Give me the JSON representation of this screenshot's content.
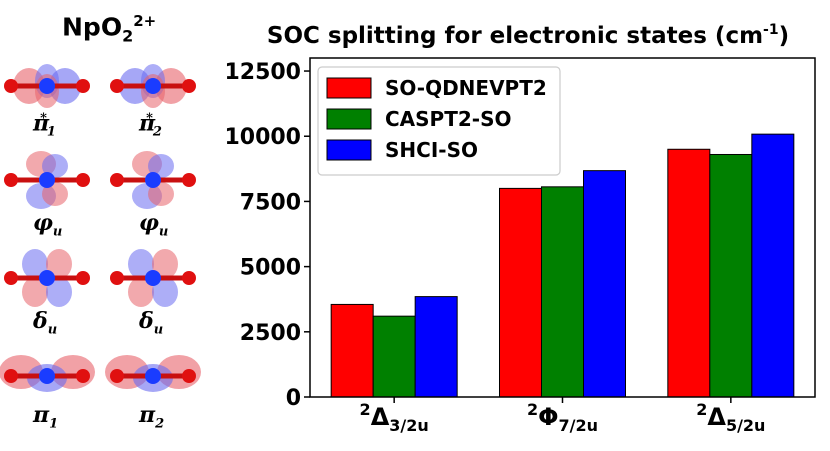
{
  "molecule": {
    "base": "NpO",
    "sub": "2",
    "sup": "2+"
  },
  "orbitals": [
    {
      "shape": "pi-star",
      "sym": "π",
      "sub": "1",
      "sup": "*"
    },
    {
      "shape": "pi-star",
      "sym": "π",
      "sub": "2",
      "sup": "*"
    },
    {
      "shape": "phi",
      "sym": "φ",
      "sub": "u",
      "sup": ""
    },
    {
      "shape": "phi",
      "sym": "φ",
      "sub": "u",
      "sup": ""
    },
    {
      "shape": "delta",
      "sym": "δ",
      "sub": "u",
      "sup": ""
    },
    {
      "shape": "delta",
      "sym": "δ",
      "sub": "u",
      "sup": ""
    },
    {
      "shape": "pi",
      "sym": "π",
      "sub": "1",
      "sup": ""
    },
    {
      "shape": "pi",
      "sym": "π",
      "sub": "2",
      "sup": ""
    }
  ],
  "colors": {
    "lobe_red": "#e8626a",
    "lobe_blue": "#6a6cf0",
    "atom_red": "#e01010",
    "atom_blue": "#1a3cff",
    "bond": "#c81010"
  },
  "chart_data": {
    "type": "bar",
    "title": "SOC splitting for electronic states (cm",
    "title_sup": "-1",
    "title_end": ")",
    "categories": [
      {
        "sup": "2",
        "main": "Δ",
        "sub": "3/2u"
      },
      {
        "sup": "2",
        "main": "Φ",
        "sub": "7/2u"
      },
      {
        "sup": "2",
        "main": "Δ",
        "sub": "5/2u"
      }
    ],
    "series": [
      {
        "name": "SO-QDNEVPT2",
        "color": "#ff0000",
        "values": [
          3550,
          8000,
          9500
        ]
      },
      {
        "name": "CASPT2-SO",
        "color": "#008000",
        "values": [
          3100,
          8060,
          9300
        ]
      },
      {
        "name": "SHCI-SO",
        "color": "#0000ff",
        "values": [
          3850,
          8680,
          10080
        ]
      }
    ],
    "ylim": [
      0,
      13000
    ],
    "yticks": [
      "0",
      "2500",
      "5000",
      "7500",
      "10000",
      "12500"
    ],
    "ytick_values": [
      0,
      2500,
      5000,
      7500,
      10000,
      12500
    ],
    "legend": "top-left",
    "grid": false
  }
}
